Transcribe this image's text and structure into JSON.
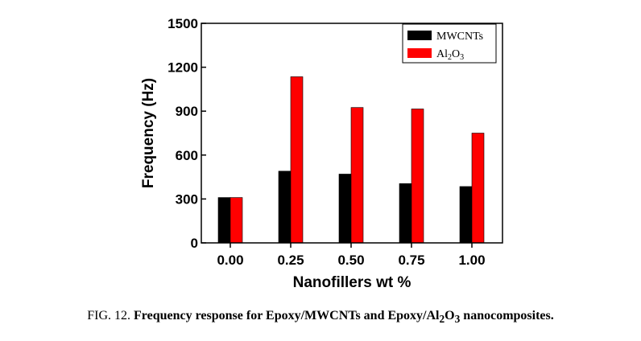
{
  "chart_data": {
    "type": "bar",
    "title": "",
    "xlabel": "Nanofillers wt %",
    "ylabel": "Frequency (Hz)",
    "categories": [
      "0.00",
      "0.25",
      "0.50",
      "0.75",
      "1.00"
    ],
    "ylim": [
      0,
      1500
    ],
    "yticks": [
      "0",
      "300",
      "600",
      "900",
      "1200",
      "1500"
    ],
    "series": [
      {
        "name": "MWCNTs",
        "color": "#000000",
        "values": [
          310,
          490,
          470,
          405,
          385
        ]
      },
      {
        "name": "Al2O3",
        "legend_parts": [
          "Al",
          "2",
          "O",
          "3"
        ],
        "color": "#ff0000",
        "values": [
          310,
          1135,
          925,
          915,
          750
        ]
      }
    ],
    "legend_position": "top-right",
    "grid": false
  },
  "caption": {
    "label": "FIG. 12.",
    "text_parts": [
      "Frequency response for Epoxy/MWCNTs and Epoxy/Al",
      "2",
      "O",
      "3",
      " nanocomposites."
    ]
  }
}
